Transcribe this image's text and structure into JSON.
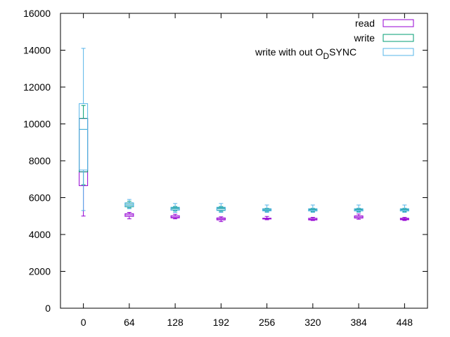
{
  "chart_data": {
    "type": "boxplot",
    "x_ticks": [
      "0",
      "64",
      "128",
      "192",
      "256",
      "320",
      "384",
      "448"
    ],
    "x_values": [
      0,
      64,
      128,
      192,
      256,
      320,
      384,
      448
    ],
    "xlim": [
      -32,
      480
    ],
    "ylim": [
      0,
      16000
    ],
    "y_ticks": [
      "0",
      "2000",
      "4000",
      "6000",
      "8000",
      "10000",
      "12000",
      "14000",
      "16000"
    ],
    "legend": {
      "placement": "top-right",
      "items": [
        {
          "key": "read",
          "text": "read",
          "sub": "",
          "after": ""
        },
        {
          "key": "write",
          "text": "write",
          "sub": "",
          "after": ""
        },
        {
          "key": "write_nosync",
          "text": "write with out O",
          "sub": "D",
          "after": "SYNC"
        }
      ]
    },
    "series": [
      {
        "name": "read",
        "color": "#9400d3",
        "boxes": [
          {
            "x": 0,
            "min": 5000,
            "q1": 6650,
            "median": 7400,
            "q3": 10300,
            "max": 10300
          },
          {
            "x": 64,
            "min": 4850,
            "q1": 4980,
            "median": 5060,
            "q3": 5130,
            "max": 5200
          },
          {
            "x": 128,
            "min": 4850,
            "q1": 4900,
            "median": 4950,
            "q3": 5020,
            "max": 5100
          },
          {
            "x": 192,
            "min": 4700,
            "q1": 4790,
            "median": 4840,
            "q3": 4900,
            "max": 4960
          },
          {
            "x": 256,
            "min": 4800,
            "q1": 4880,
            "median": 4880,
            "q3": 4880,
            "max": 4980
          },
          {
            "x": 320,
            "min": 4760,
            "q1": 4790,
            "median": 4830,
            "q3": 4880,
            "max": 4930
          },
          {
            "x": 384,
            "min": 4830,
            "q1": 4890,
            "median": 4950,
            "q3": 5010,
            "max": 5110
          },
          {
            "x": 448,
            "min": 4760,
            "q1": 4800,
            "median": 4840,
            "q3": 4880,
            "max": 4930
          }
        ]
      },
      {
        "name": "write",
        "color": "#009e73",
        "boxes": [
          {
            "x": 0,
            "min": 6700,
            "q1": 7400,
            "median": 9700,
            "q3": 10300,
            "max": 11000
          },
          {
            "x": 64,
            "min": 5450,
            "q1": 5500,
            "median": 5600,
            "q3": 5700,
            "max": 5800
          },
          {
            "x": 128,
            "min": 5280,
            "q1": 5330,
            "median": 5400,
            "q3": 5450,
            "max": 5520
          },
          {
            "x": 192,
            "min": 5250,
            "q1": 5320,
            "median": 5400,
            "q3": 5450,
            "max": 5520
          },
          {
            "x": 256,
            "min": 5250,
            "q1": 5300,
            "median": 5330,
            "q3": 5380,
            "max": 5420
          },
          {
            "x": 320,
            "min": 5230,
            "q1": 5280,
            "median": 5330,
            "q3": 5370,
            "max": 5420
          },
          {
            "x": 384,
            "min": 5230,
            "q1": 5280,
            "median": 5330,
            "q3": 5370,
            "max": 5420
          },
          {
            "x": 448,
            "min": 5230,
            "q1": 5280,
            "median": 5330,
            "q3": 5370,
            "max": 5420
          }
        ]
      },
      {
        "name": "write with out O_D SYNC",
        "color": "#56b4e9",
        "boxes": [
          {
            "x": 0,
            "min": 5300,
            "q1": 7500,
            "median": 9700,
            "q3": 11100,
            "max": 14100
          },
          {
            "x": 64,
            "min": 5400,
            "q1": 5520,
            "median": 5620,
            "q3": 5720,
            "max": 5900
          },
          {
            "x": 128,
            "min": 5200,
            "q1": 5320,
            "median": 5400,
            "q3": 5480,
            "max": 5680
          },
          {
            "x": 192,
            "min": 5200,
            "q1": 5300,
            "median": 5400,
            "q3": 5480,
            "max": 5680
          },
          {
            "x": 256,
            "min": 5200,
            "q1": 5280,
            "median": 5330,
            "q3": 5400,
            "max": 5600
          },
          {
            "x": 320,
            "min": 5200,
            "q1": 5280,
            "median": 5330,
            "q3": 5400,
            "max": 5600
          },
          {
            "x": 384,
            "min": 5200,
            "q1": 5280,
            "median": 5330,
            "q3": 5400,
            "max": 5600
          },
          {
            "x": 448,
            "min": 5200,
            "q1": 5280,
            "median": 5330,
            "q3": 5400,
            "max": 5600
          }
        ]
      }
    ],
    "grid": false
  }
}
